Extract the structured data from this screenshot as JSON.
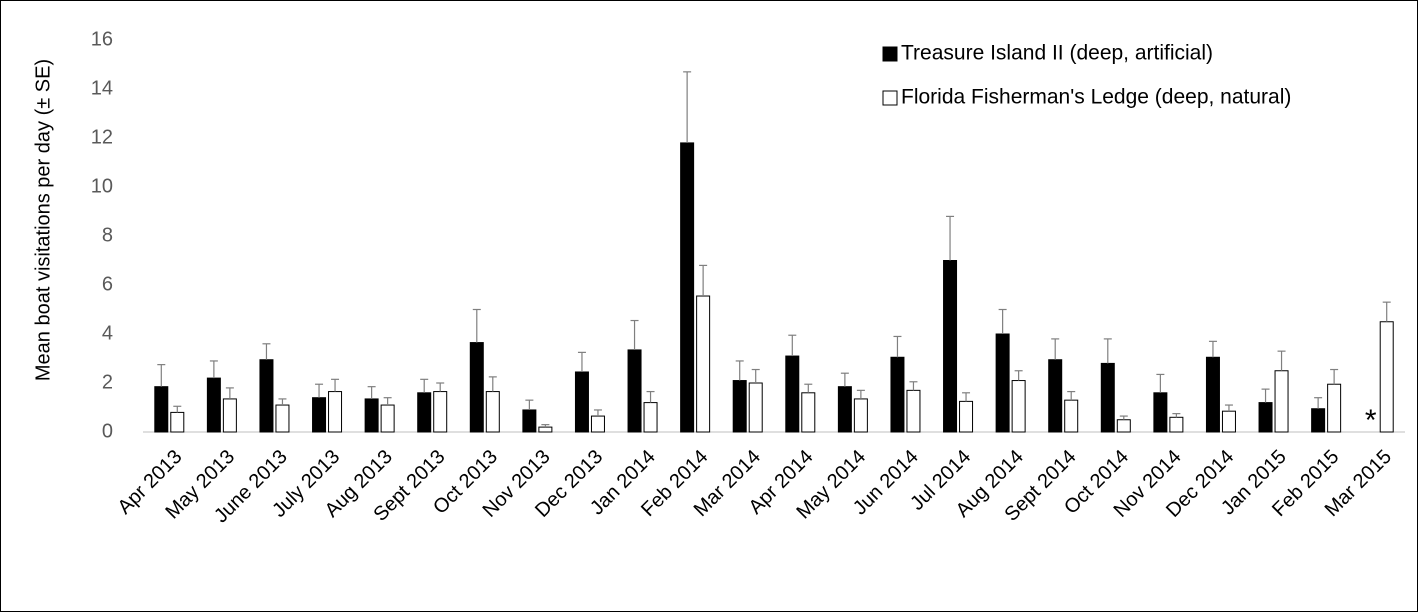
{
  "chart_data": {
    "type": "bar",
    "ylabel": "Mean boat visitations per day (± SE)",
    "categories": [
      "Apr 2013",
      "May 2013",
      "June 2013",
      "July 2013",
      "Aug 2013",
      "Sept 2013",
      "Oct 2013",
      "Nov 2013",
      "Dec 2013",
      "Jan 2014",
      "Feb 2014",
      "Mar 2014",
      "Apr 2014",
      "May 2014",
      "Jun 2014",
      "Jul 2014",
      "Aug 2014",
      "Sept 2014",
      "Oct 2014",
      "Nov 2014",
      "Dec 2014",
      "Jan 2015",
      "Feb 2015",
      "Mar 2015"
    ],
    "series": [
      {
        "name": "Treasure Island II (deep, artificial)",
        "color": "#000000",
        "values": [
          1.85,
          2.2,
          2.95,
          1.4,
          1.35,
          1.6,
          3.65,
          0.9,
          2.45,
          3.35,
          11.8,
          2.1,
          3.1,
          1.85,
          3.05,
          7.0,
          4.0,
          2.95,
          2.8,
          1.6,
          3.05,
          1.2,
          0.95,
          null
        ],
        "errors": [
          0.9,
          0.7,
          0.65,
          0.55,
          0.5,
          0.55,
          1.35,
          0.4,
          0.8,
          1.2,
          2.9,
          0.8,
          0.85,
          0.55,
          0.85,
          1.8,
          1.0,
          0.85,
          1.0,
          0.75,
          0.65,
          0.55,
          0.45,
          null
        ]
      },
      {
        "name": "Florida Fisherman's Ledge (deep, natural)",
        "color": "#ffffff",
        "values": [
          0.8,
          1.35,
          1.1,
          1.65,
          1.1,
          1.65,
          1.65,
          0.2,
          0.65,
          1.2,
          5.55,
          2.0,
          1.6,
          1.35,
          1.7,
          1.25,
          2.1,
          1.3,
          0.5,
          0.6,
          0.85,
          2.5,
          1.95,
          4.5
        ],
        "errors": [
          0.25,
          0.45,
          0.25,
          0.5,
          0.3,
          0.35,
          0.6,
          0.1,
          0.25,
          0.45,
          1.25,
          0.55,
          0.35,
          0.35,
          0.35,
          0.35,
          0.4,
          0.35,
          0.15,
          0.15,
          0.25,
          0.8,
          0.6,
          0.8
        ]
      }
    ],
    "annotation": "*",
    "ylim": [
      0,
      16
    ],
    "yticks": [
      0,
      2,
      4,
      6,
      8,
      10,
      12,
      14,
      16
    ],
    "grid": false,
    "legend": "top-right"
  }
}
